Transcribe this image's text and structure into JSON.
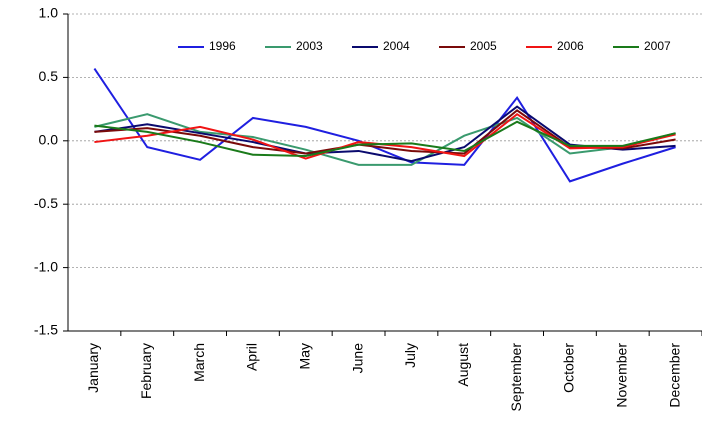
{
  "chart_data": {
    "type": "line",
    "categories": [
      "January",
      "February",
      "March",
      "April",
      "May",
      "June",
      "July",
      "August",
      "September",
      "October",
      "November",
      "December"
    ],
    "series": [
      {
        "name": "1996",
        "color": "#1f1fe0",
        "values": [
          0.57,
          -0.05,
          -0.15,
          0.18,
          0.11,
          0.0,
          -0.17,
          -0.19,
          0.34,
          -0.32,
          -0.18,
          -0.05
        ]
      },
      {
        "name": "2003",
        "color": "#3a9a6e",
        "values": [
          0.11,
          0.21,
          0.07,
          0.03,
          -0.07,
          -0.19,
          -0.19,
          0.04,
          0.18,
          -0.1,
          -0.05,
          0.06
        ]
      },
      {
        "name": "2004",
        "color": "#0a0a6e",
        "values": [
          0.07,
          0.13,
          0.06,
          -0.01,
          -0.1,
          -0.08,
          -0.16,
          -0.05,
          0.27,
          -0.03,
          -0.07,
          -0.04
        ]
      },
      {
        "name": "2005",
        "color": "#7a0a0a",
        "values": [
          0.07,
          0.1,
          0.04,
          -0.05,
          -0.1,
          -0.03,
          -0.08,
          -0.1,
          0.24,
          -0.05,
          -0.06,
          0.01
        ]
      },
      {
        "name": "2006",
        "color": "#f01414",
        "values": [
          -0.01,
          0.04,
          0.11,
          0.01,
          -0.14,
          -0.01,
          -0.05,
          -0.12,
          0.21,
          -0.06,
          -0.05,
          0.05
        ]
      },
      {
        "name": "2007",
        "color": "#1a7a1a",
        "values": [
          0.12,
          0.07,
          -0.01,
          -0.11,
          -0.12,
          -0.03,
          -0.02,
          -0.08,
          0.15,
          -0.04,
          -0.04,
          0.06
        ]
      }
    ],
    "ylim": [
      -1.5,
      1.0
    ],
    "yticks": [
      {
        "value": -1.5,
        "label": "-1.5"
      },
      {
        "value": -1,
        "label": "-1.0"
      },
      -0.5,
      {
        "value": 0,
        "label": "0.0"
      },
      0.5,
      {
        "value": 1,
        "label": "1.0"
      }
    ],
    "grid": true,
    "legend": "top"
  }
}
